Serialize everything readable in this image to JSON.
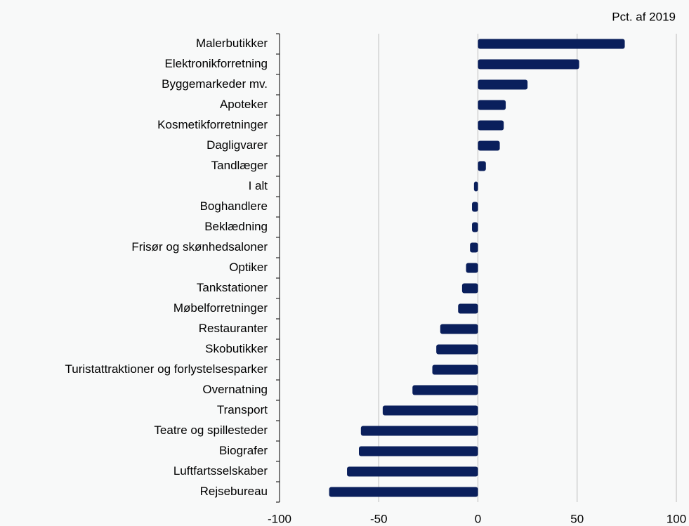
{
  "chart_data": {
    "type": "barh",
    "unit_label": "Pct. af 2019",
    "categories": [
      "Malerbutikker",
      "Elektronikforretning",
      "Byggemarkeder mv.",
      "Apoteker",
      "Kosmetikforretninger",
      "Dagligvarer",
      "Tandlæger",
      "I alt",
      "Boghandlere",
      "Beklædning",
      "Frisør og skønhedsaloner",
      "Optiker",
      "Tankstationer",
      "Møbelforretninger",
      "Restauranter",
      "Skobutikker",
      "Turistattraktioner og forlystelsesparker",
      "Overnatning",
      "Transport",
      "Teatre og spillesteder",
      "Biografer",
      "Luftfartsselskaber",
      "Rejsebureau"
    ],
    "values": [
      74,
      51,
      25,
      14,
      13,
      11,
      4,
      -2,
      -3,
      -3,
      -4,
      -6,
      -8,
      -10,
      -19,
      -21,
      -23,
      -33,
      -48,
      -59,
      -60,
      -66,
      -75
    ],
    "color": "#0a1f5c",
    "xlim": [
      -100,
      100
    ],
    "xticks": [
      -100,
      -50,
      0,
      50,
      100
    ],
    "grid": true
  }
}
